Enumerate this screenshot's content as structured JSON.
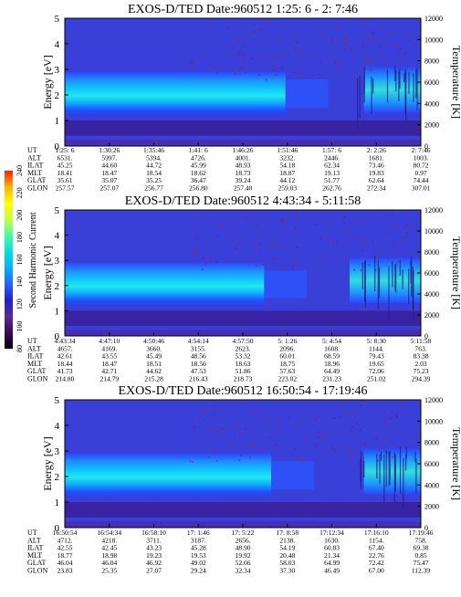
{
  "colorbar": {
    "label": "Second Harmonic Current",
    "ticks": [
      "240",
      "220",
      "200",
      "180",
      "160",
      "140",
      "120",
      "100",
      "80"
    ],
    "stops": [
      "#000000",
      "#3a0a5a",
      "#5a2a9a",
      "#2020d0",
      "#2a60ff",
      "#00b0ff",
      "#00e0e0",
      "#40ffa0",
      "#c8ff40",
      "#ffff00",
      "#ffb000",
      "#ff2000"
    ]
  },
  "chart_data": [
    {
      "type": "heatmap",
      "title": "EXOS-D/TED   Date:960512  1:25: 6 - 2: 7:46",
      "ylabel": "Energy [eV]",
      "ylabel2": "Temperature [K]",
      "ylim": [
        0,
        5
      ],
      "ylim2": [
        0,
        12000
      ],
      "yticks": [
        "0",
        "1",
        "2",
        "3",
        "4",
        "5"
      ],
      "yticks2": [
        "0",
        "2000",
        "4000",
        "6000",
        "8000",
        "10000",
        "12000"
      ],
      "ephemeris_labels": [
        "UT",
        "ALT",
        "ILAT",
        "MLT",
        "GLAT",
        "GLON"
      ],
      "ephemeris": [
        [
          "1:25: 6",
          "1:30:26",
          "1:35:46",
          "1:41: 6",
          "1:46:26",
          "1:51:46",
          "1:57: 6",
          "2: 2:26",
          "2: 7:46"
        ],
        [
          "6531.",
          "5997.",
          "5394.",
          "4726.",
          "4001.",
          "3232.",
          "2446.",
          "1681.",
          "1003."
        ],
        [
          "45.25",
          "44.60",
          "44.72",
          "45.99",
          "48.93",
          "54.18",
          "62.34",
          "73.46",
          "80.72"
        ],
        [
          "18.41",
          "18.47",
          "18.54",
          "18.62",
          "18.73",
          "18.87",
          "19.13",
          "19.83",
          "0.97"
        ],
        [
          "35.61",
          "35.07",
          "35.25",
          "36.47",
          "39.24",
          "44.12",
          "51.77",
          "62.64",
          "74.44"
        ],
        [
          "257.57",
          "257.07",
          "256.77",
          "256.80",
          "257.40",
          "259.03",
          "262.76",
          "272.34",
          "307.01"
        ]
      ]
    },
    {
      "type": "heatmap",
      "title": "EXOS-D/TED   Date:960512  4:43:34 - 5:11:58",
      "ylabel": "Energy [eV]",
      "ylabel2": "Temperature [K]",
      "ylim": [
        0,
        5
      ],
      "ylim2": [
        0,
        12000
      ],
      "yticks": [
        "0",
        "1",
        "2",
        "3",
        "4",
        "5"
      ],
      "yticks2": [
        "0",
        "2000",
        "4000",
        "6000",
        "8000",
        "10000",
        "12000"
      ],
      "ephemeris_labels": [
        "UT",
        "ALT",
        "ILAT",
        "MLT",
        "GLAT",
        "GLON"
      ],
      "ephemeris": [
        [
          "4:43:34",
          "4:47:10",
          "4:50:46",
          "4:54:14",
          "4:57:50",
          "5: 1:26",
          "5: 4:54",
          "5: 8:30",
          "5:11:58"
        ],
        [
          "4657.",
          "4169.",
          "3660.",
          "3155.",
          "2623.",
          "2096.",
          "1608.",
          "1144.",
          "763."
        ],
        [
          "42.61",
          "43.55",
          "45.49",
          "48.56",
          "53.32",
          "60.01",
          "68.59",
          "79.43",
          "83.38"
        ],
        [
          "18.44",
          "18.47",
          "18.51",
          "18.56",
          "18.63",
          "18.75",
          "18.96",
          "19.65",
          "2.03"
        ],
        [
          "41.73",
          "42.71",
          "44.62",
          "47.53",
          "51.86",
          "57.63",
          "64.49",
          "72.06",
          "75.23"
        ],
        [
          "214.80",
          "214.79",
          "215.28",
          "216.43",
          "218.73",
          "223.02",
          "231.23",
          "251.02",
          "294.39"
        ]
      ]
    },
    {
      "type": "heatmap",
      "title": "EXOS-D/TED   Date:960512  16:50:54 - 17:19:46",
      "ylabel": "Energy [eV]",
      "ylabel2": "Temperature [K]",
      "ylim": [
        0,
        5
      ],
      "ylim2": [
        0,
        12000
      ],
      "yticks": [
        "0",
        "1",
        "2",
        "3",
        "4",
        "5"
      ],
      "yticks2": [
        "0",
        "2000",
        "4000",
        "6000",
        "8000",
        "10000",
        "12000"
      ],
      "ephemeris_labels": [
        "UT",
        "ALT",
        "ILAT",
        "MLT",
        "GLAT",
        "GLON"
      ],
      "ephemeris": [
        [
          "16:50:54",
          "16:54:34",
          "16:58:10",
          "17: 1:46",
          "17: 5:22",
          "17: 8:58",
          "17:12:34",
          "17:16:10",
          "17:19:46"
        ],
        [
          "4712.",
          "4218.",
          "3711.",
          "3187.",
          "2656.",
          "2138.",
          "1630.",
          "1154.",
          "758."
        ],
        [
          "42.55",
          "42.45",
          "43.23",
          "45.28",
          "48.90",
          "54.19",
          "60.83",
          "67.40",
          "69.38"
        ],
        [
          "18.77",
          "18.98",
          "19.23",
          "19.53",
          "19.92",
          "20.48",
          "21.34",
          "22.76",
          "0.85"
        ],
        [
          "46.04",
          "46.04",
          "46.92",
          "49.02",
          "52.66",
          "58.03",
          "64.99",
          "72.42",
          "75.47"
        ],
        [
          "23.83",
          "25.35",
          "27.07",
          "29.24",
          "32.34",
          "37.30",
          "46.49",
          "67.00",
          "112.39"
        ]
      ]
    }
  ]
}
